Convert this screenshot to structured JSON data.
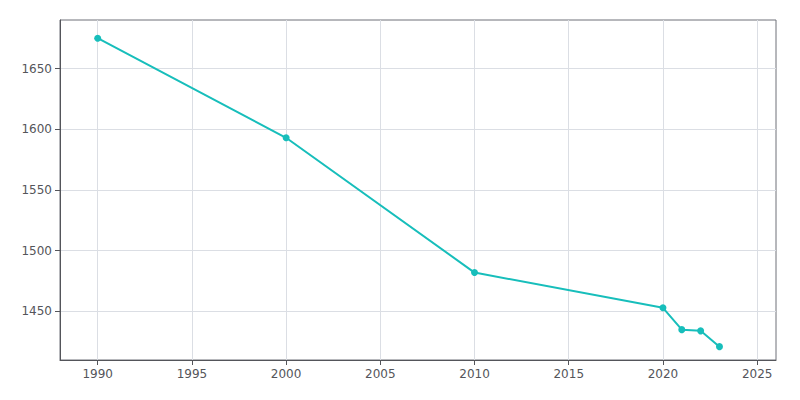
{
  "chart_data": {
    "type": "line",
    "x": [
      1990,
      2000,
      2010,
      2020,
      2021,
      2022,
      2023
    ],
    "values": [
      1675,
      1593,
      1482,
      1453,
      1435,
      1434,
      1421
    ],
    "color": "#17BEBB",
    "marker": "circle",
    "xlim": [
      1988,
      2026
    ],
    "ylim": [
      1410,
      1690
    ],
    "xticks": [
      1990,
      1995,
      2000,
      2005,
      2010,
      2015,
      2020,
      2025
    ],
    "yticks": [
      1450,
      1500,
      1550,
      1600,
      1650
    ],
    "grid": true
  }
}
